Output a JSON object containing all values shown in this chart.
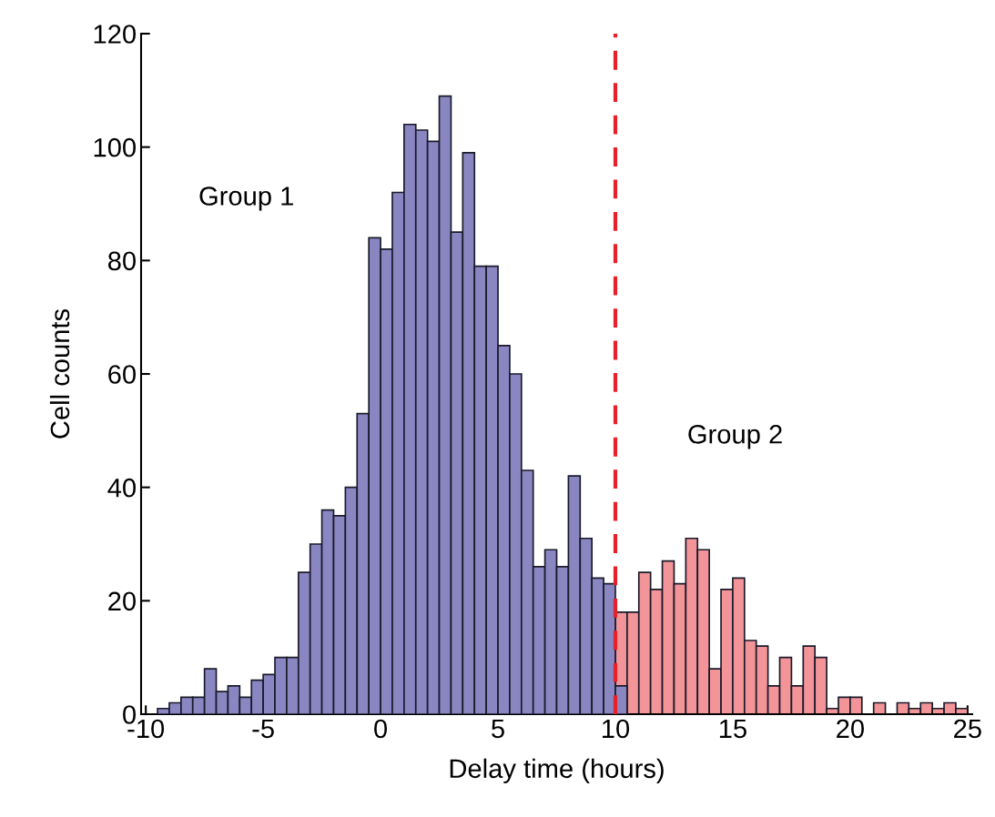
{
  "chart_data": {
    "type": "histogram",
    "xlabel": "Delay time (hours)",
    "ylabel": "Cell counts",
    "bins": [
      -9.5,
      -9,
      -8.5,
      -8,
      -7.5,
      -7,
      -6.5,
      -6,
      -5.5,
      -5,
      -4.5,
      -4,
      -3.5,
      -3,
      -2.5,
      -2,
      -1.5,
      -1,
      -0.5,
      0,
      0.5,
      1,
      1.5,
      2,
      2.5,
      3,
      3.5,
      4,
      4.5,
      5,
      5.5,
      6,
      6.5,
      7,
      7.5,
      8,
      8.5,
      9,
      9.5,
      10,
      10.5,
      11,
      11.5,
      12,
      12.5,
      13,
      13.5,
      14,
      14.5,
      15,
      15.5,
      16,
      16.5,
      17,
      17.5,
      18,
      18.5,
      19,
      19.5,
      20,
      20.5,
      21,
      21.5,
      22,
      22.5,
      23,
      23.5,
      24,
      24.5,
      25
    ],
    "series": [
      {
        "color": "#f29498",
        "values": [
          null,
          null,
          null,
          null,
          null,
          null,
          null,
          null,
          null,
          null,
          null,
          null,
          null,
          null,
          null,
          null,
          null,
          null,
          null,
          null,
          null,
          null,
          null,
          null,
          null,
          null,
          null,
          null,
          null,
          null,
          null,
          null,
          null,
          null,
          null,
          null,
          null,
          null,
          null,
          18,
          18,
          25,
          22,
          27,
          23,
          31,
          29,
          8,
          22,
          24,
          13,
          12,
          5,
          10,
          5,
          12,
          10,
          1,
          3,
          3,
          0,
          2,
          0,
          2,
          1,
          2,
          1,
          2,
          1
        ]
      },
      {
        "color": "#8a86c2",
        "values": [
          1,
          2,
          3,
          3,
          8,
          4,
          5,
          3,
          6,
          7,
          10,
          10,
          25,
          30,
          36,
          35,
          40,
          53,
          84,
          82,
          92,
          104,
          103,
          101,
          109,
          85,
          99,
          79,
          79,
          65,
          60,
          43,
          26,
          29,
          26,
          42,
          31,
          24,
          23,
          5,
          null,
          null,
          null,
          null,
          null,
          null,
          null,
          null,
          null,
          null,
          null,
          null,
          null,
          null,
          null,
          null,
          null,
          null,
          null,
          null,
          null,
          null,
          null,
          null,
          null,
          null,
          null,
          null,
          null
        ]
      }
    ],
    "xlim": [
      -10.2,
      25.2
    ],
    "xticks": [
      -10,
      -5,
      0,
      5,
      10,
      15,
      20,
      25
    ],
    "ylim": [
      0,
      120
    ],
    "yticks": [
      0,
      20,
      40,
      60,
      80,
      100,
      120
    ],
    "ref_lines": [
      {
        "axis": "x",
        "value": 10,
        "color": "#e8202a",
        "line_style": "dashed"
      }
    ],
    "annotations": [
      "Group 1",
      "Group 2"
    ],
    "grid": false,
    "legend": false
  }
}
